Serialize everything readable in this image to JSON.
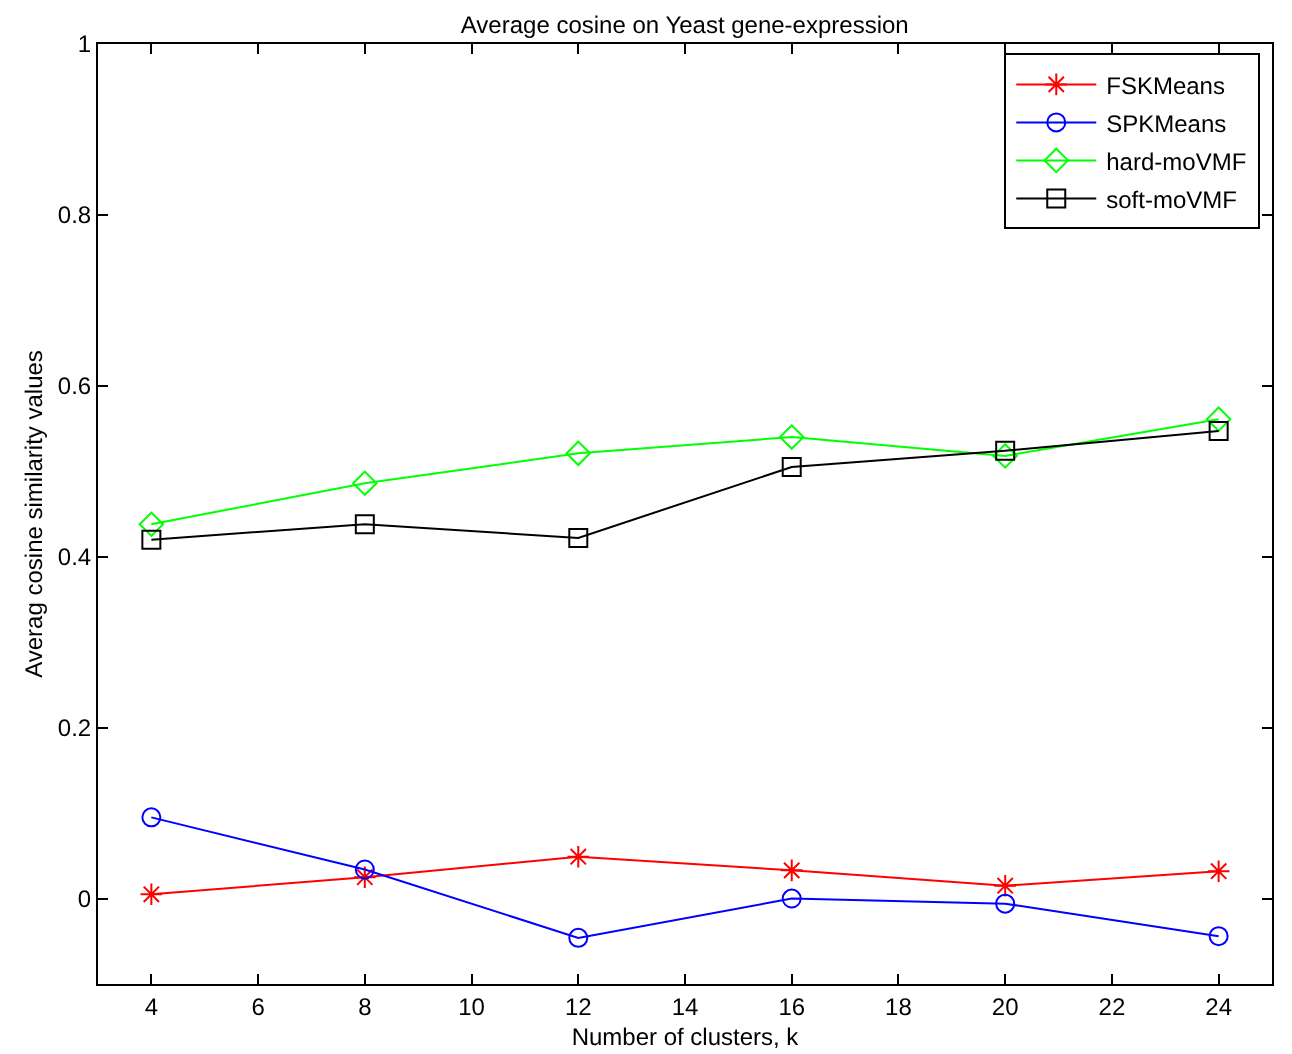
{
  "chart_data": {
    "type": "line",
    "title": "Average cosine on Yeast gene-expression",
    "xlabel": "Number of clusters, k",
    "ylabel": "Averag cosine similarity values",
    "x": [
      4,
      8,
      12,
      16,
      20,
      24
    ],
    "series": [
      {
        "name": "FSKMeans",
        "color": "#ff0000",
        "marker": "cross",
        "values": [
          0.005,
          0.025,
          0.049,
          0.033,
          0.015,
          0.032
        ]
      },
      {
        "name": "SPKMeans",
        "color": "#0000ff",
        "marker": "circle",
        "values": [
          0.095,
          0.034,
          -0.046,
          0.0,
          -0.006,
          -0.044
        ]
      },
      {
        "name": "hard-moVMF",
        "color": "#00ff00",
        "marker": "diamond",
        "values": [
          0.438,
          0.486,
          0.521,
          0.54,
          0.518,
          0.561
        ]
      },
      {
        "name": "soft-moVMF",
        "color": "#000000",
        "marker": "square",
        "values": [
          0.42,
          0.438,
          0.422,
          0.505,
          0.524,
          0.547
        ]
      }
    ],
    "xlim": [
      3,
      25
    ],
    "ylim": [
      -0.1,
      1
    ],
    "xticks": [
      4,
      6,
      8,
      10,
      12,
      14,
      16,
      18,
      20,
      22,
      24
    ],
    "yticks": [
      0,
      0.2,
      0.4,
      0.6,
      0.8,
      1
    ],
    "grid": false,
    "legend": "top right",
    "line_style": "solid"
  }
}
